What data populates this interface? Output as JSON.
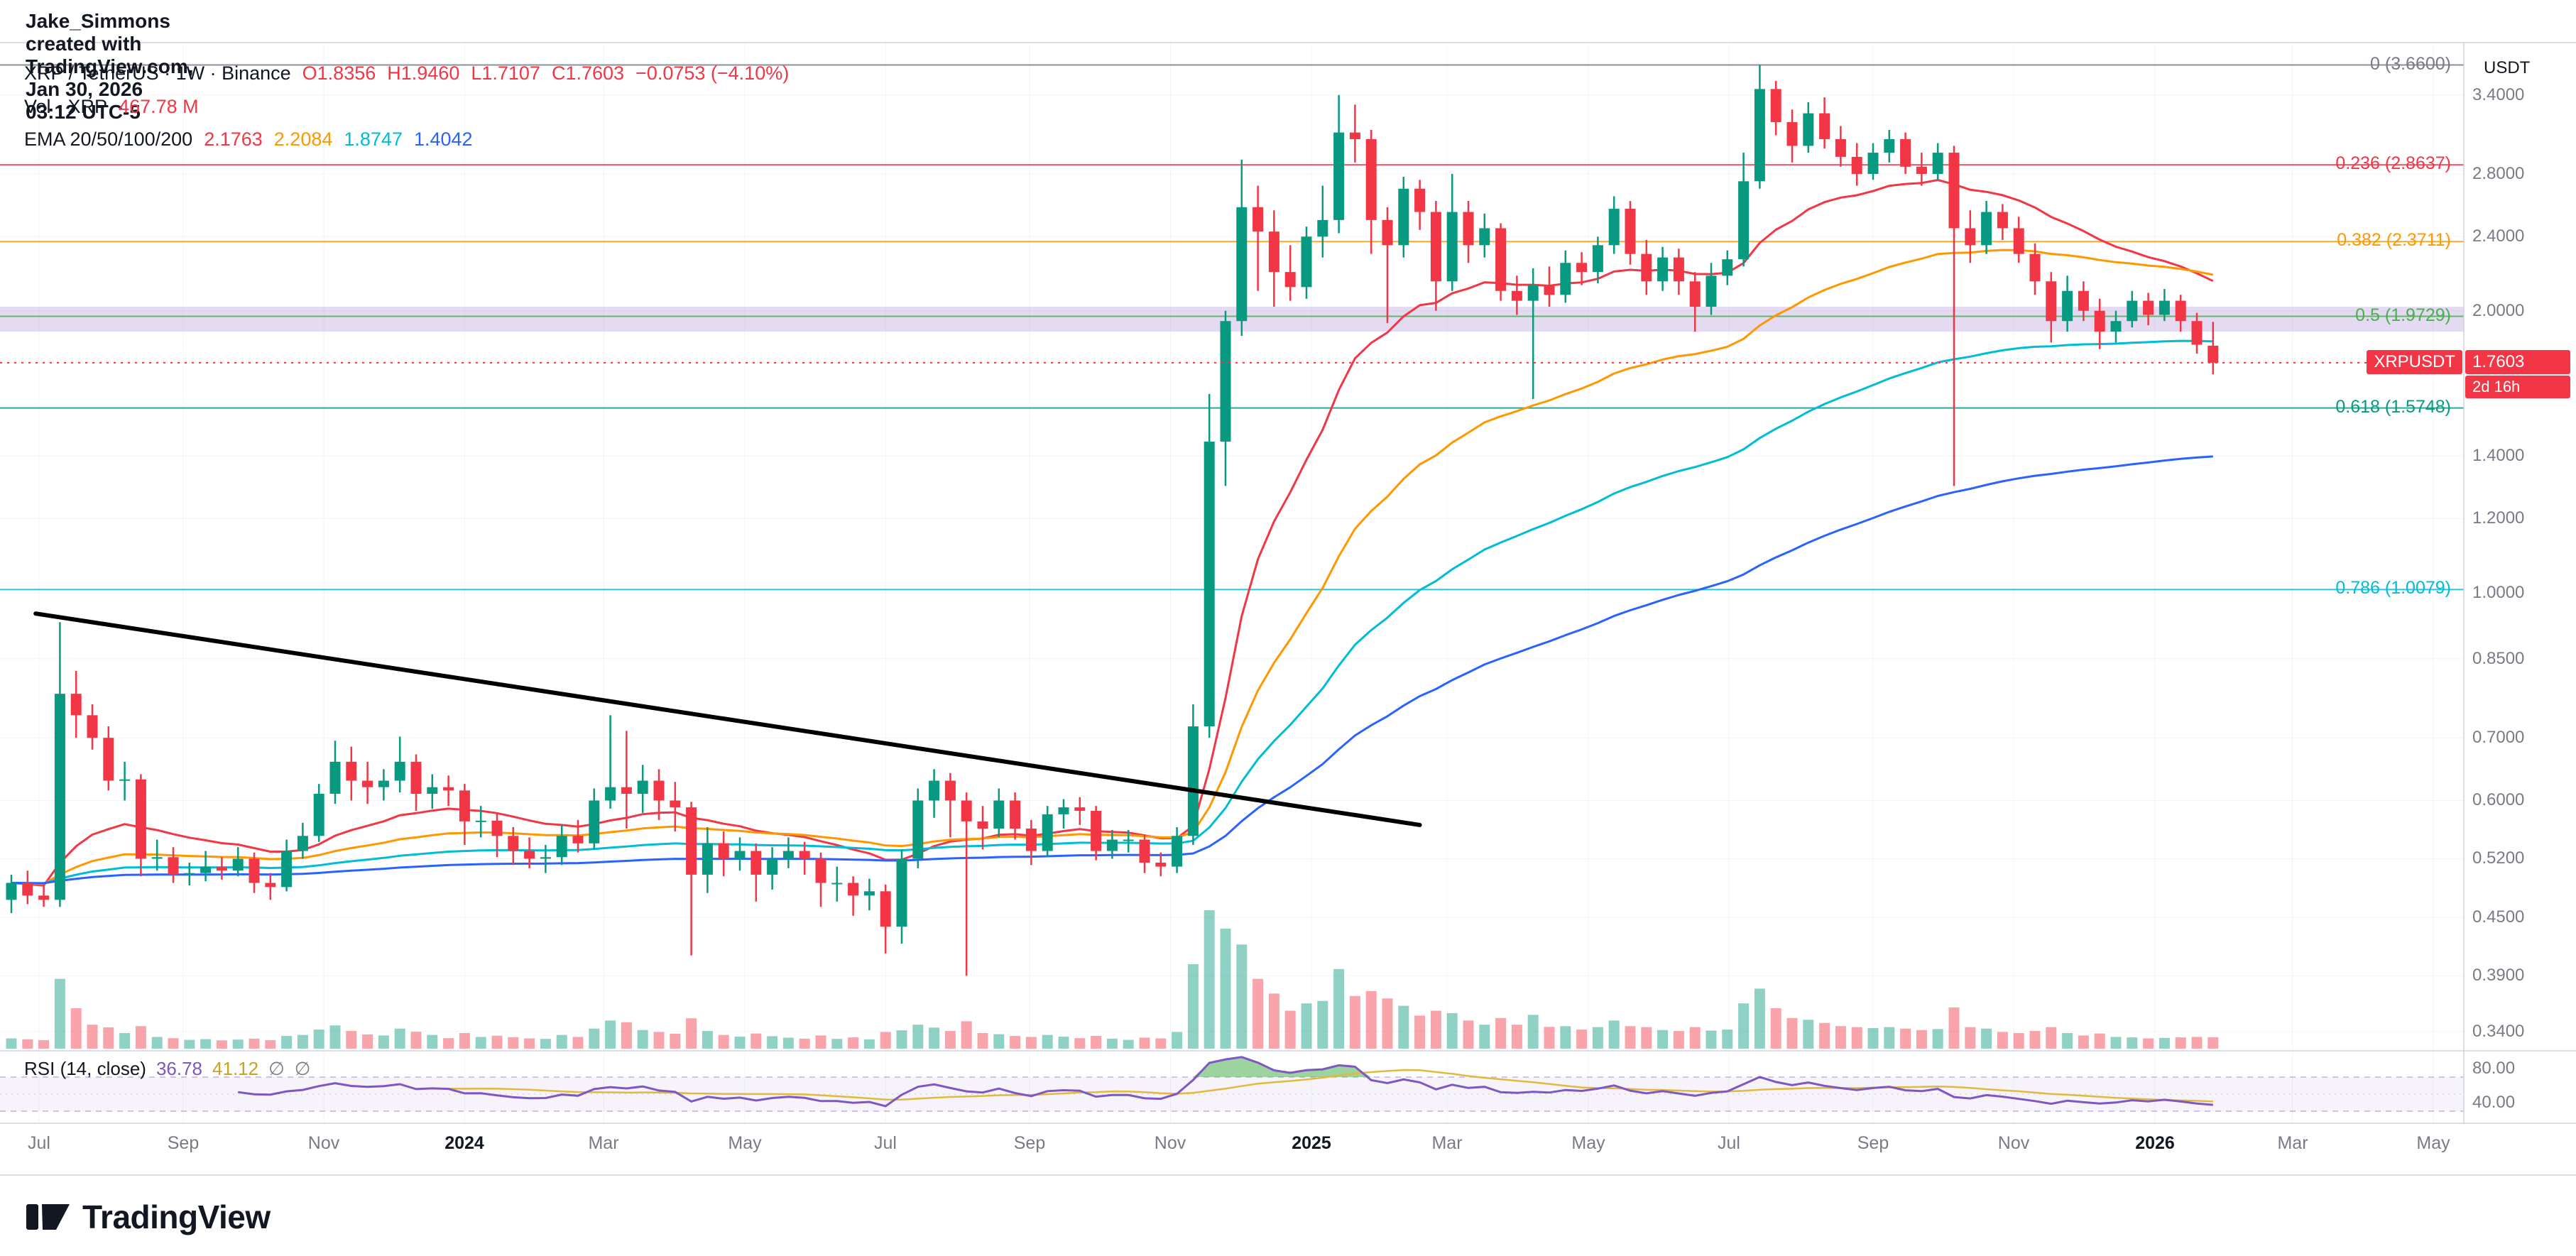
{
  "attribution": "Jake_Simmons created with TradingView.com, Jan 30, 2026 03:12 UTC-5",
  "header": {
    "symbol_line": {
      "segments": [
        {
          "text": "XRP / TetherUS · 1W · Binance",
          "color": "#131722"
        },
        {
          "text": "O1.8356",
          "color": "#f23645"
        },
        {
          "text": "H1.9460",
          "color": "#f23645"
        },
        {
          "text": "L1.7107",
          "color": "#f23645"
        },
        {
          "text": "C1.7603",
          "color": "#f23645"
        },
        {
          "text": "−0.0753 (−4.10%)",
          "color": "#f23645"
        }
      ]
    },
    "volume_line": {
      "segments": [
        {
          "text": "Vol · XRP",
          "color": "#131722"
        },
        {
          "text": "467.78 M",
          "color": "#f23645"
        }
      ]
    },
    "ema_line": {
      "segments": [
        {
          "text": "EMA 20/50/100/200",
          "color": "#131722"
        },
        {
          "text": "2.1763",
          "color": "#f23645"
        },
        {
          "text": "2.2084",
          "color": "#ff9800"
        },
        {
          "text": "1.8747",
          "color": "#00bcd4"
        },
        {
          "text": "1.4042",
          "color": "#2962ff"
        }
      ]
    }
  },
  "rsi_panel": {
    "legend": {
      "segments": [
        {
          "text": "RSI (14, close)",
          "color": "#131722"
        },
        {
          "text": "36.78",
          "color": "#7e57c2"
        },
        {
          "text": "41.12",
          "color": "#c9a227"
        },
        {
          "text": "∅",
          "color": "#787b86"
        },
        {
          "text": "∅",
          "color": "#787b86"
        }
      ]
    },
    "axis_labels": [
      {
        "text": "80.00",
        "value": 80
      },
      {
        "text": "40.00",
        "value": 40
      }
    ],
    "period": 14,
    "value": 36.78,
    "ma_value": 41.12,
    "levels": {
      "upper": 70,
      "middle": 50,
      "lower": 30
    },
    "colors": {
      "rsi": "#7e57c2",
      "ma": "#e2b93d",
      "band": "rgba(126,87,194,0.07)",
      "level_line": "rgba(126,87,194,0.45)",
      "overbought_fill": "rgba(76,175,80,0.55)"
    }
  },
  "price_axis": {
    "title": "USDT",
    "ticks": [
      {
        "label": "3.4000",
        "price": 3.4
      },
      {
        "label": "2.8000",
        "price": 2.8
      },
      {
        "label": "2.4000",
        "price": 2.4
      },
      {
        "label": "2.0000",
        "price": 2.0
      },
      {
        "label": "1.4000",
        "price": 1.4
      },
      {
        "label": "1.2000",
        "price": 1.2
      },
      {
        "label": "1.0000",
        "price": 1.0
      },
      {
        "label": "0.8500",
        "price": 0.85
      },
      {
        "label": "0.7000",
        "price": 0.7
      },
      {
        "label": "0.6000",
        "price": 0.6
      },
      {
        "label": "0.5200",
        "price": 0.52
      },
      {
        "label": "0.4500",
        "price": 0.45
      },
      {
        "label": "0.3900",
        "price": 0.39
      },
      {
        "label": "0.3400",
        "price": 0.34
      }
    ]
  },
  "time_axis": {
    "labels": [
      {
        "text": "Jul",
        "week": 1.7,
        "year": false
      },
      {
        "text": "Sep",
        "week": 10.6,
        "year": false
      },
      {
        "text": "Nov",
        "week": 19.3,
        "year": false
      },
      {
        "text": "2024",
        "week": 28.0,
        "year": true
      },
      {
        "text": "Mar",
        "week": 36.6,
        "year": false
      },
      {
        "text": "May",
        "week": 45.3,
        "year": false
      },
      {
        "text": "Jul",
        "week": 54.0,
        "year": false
      },
      {
        "text": "Sep",
        "week": 62.9,
        "year": false
      },
      {
        "text": "Nov",
        "week": 71.6,
        "year": false
      },
      {
        "text": "2025",
        "week": 80.3,
        "year": true
      },
      {
        "text": "Mar",
        "week": 88.7,
        "year": false
      },
      {
        "text": "May",
        "week": 97.4,
        "year": false
      },
      {
        "text": "Jul",
        "week": 106.1,
        "year": false
      },
      {
        "text": "Sep",
        "week": 115.0,
        "year": false
      },
      {
        "text": "Nov",
        "week": 123.7,
        "year": false
      },
      {
        "text": "2026",
        "week": 132.4,
        "year": true
      },
      {
        "text": "Mar",
        "week": 140.9,
        "year": false
      },
      {
        "text": "May",
        "week": 149.6,
        "year": false
      }
    ]
  },
  "last_price": {
    "symbol_tag": "XRPUSDT",
    "price_label": "1.7603",
    "price": 1.7603,
    "countdown": "2d 16h",
    "color": "#f23645"
  },
  "fib": {
    "levels": [
      {
        "label": "0",
        "value": "3.6600",
        "price": 3.66,
        "color": "#787b86"
      },
      {
        "label": "0.236",
        "value": "2.8637",
        "price": 2.8637,
        "color": "#f23645"
      },
      {
        "label": "0.382",
        "value": "2.3711",
        "price": 2.3711,
        "color": "#ff9800"
      },
      {
        "label": "0.5",
        "value": "1.9729",
        "price": 1.9729,
        "color": "#4caf50"
      },
      {
        "label": "0.618",
        "value": "1.5748",
        "price": 1.5748,
        "color": "#089981"
      },
      {
        "label": "0.786",
        "value": "1.0079",
        "price": 1.0079,
        "color": "#00bcd4"
      }
    ]
  },
  "zone": {
    "top_price": 2.02,
    "bottom_price": 1.9,
    "color": "rgba(103,58,183,0.18)"
  },
  "trendline": {
    "x1_week": 1.5,
    "price1": 0.95,
    "x2_week": 87,
    "price2": 0.565,
    "color": "#000000",
    "width": 6
  },
  "chart_data": {
    "type": "candlestick",
    "symbol": "XRP / TetherUS",
    "interval": "1W",
    "exchange": "Binance",
    "scale": "log",
    "ohlc_last": {
      "open": 1.8356,
      "high": 1.946,
      "low": 1.7107,
      "close": 1.7603,
      "change": -0.0753,
      "change_pct": -4.1
    },
    "volume_last": "467.78 M",
    "ylim": [
      0.33,
      3.8
    ],
    "colors": {
      "up": "#089981",
      "down": "#f23645",
      "vol_up": "rgba(8,153,129,0.45)",
      "vol_down": "rgba(242,54,69,0.45)"
    },
    "emas": [
      {
        "period": 20,
        "color": "#f23645",
        "last": 2.1763
      },
      {
        "period": 50,
        "color": "#ff9800",
        "last": 2.2084
      },
      {
        "period": 100,
        "color": "#00bcd4",
        "last": 1.8747
      },
      {
        "period": 200,
        "color": "#2962ff",
        "last": 1.4042
      }
    ],
    "candles": [
      [
        0.47,
        0.5,
        0.455,
        0.49,
        420
      ],
      [
        0.49,
        0.505,
        0.465,
        0.475,
        380
      ],
      [
        0.475,
        0.488,
        0.462,
        0.47,
        350
      ],
      [
        0.47,
        0.93,
        0.462,
        0.78,
        2850
      ],
      [
        0.78,
        0.825,
        0.7,
        0.74,
        1650
      ],
      [
        0.74,
        0.76,
        0.68,
        0.7,
        980
      ],
      [
        0.7,
        0.72,
        0.615,
        0.63,
        870
      ],
      [
        0.63,
        0.66,
        0.6,
        0.632,
        640
      ],
      [
        0.632,
        0.64,
        0.498,
        0.52,
        920
      ],
      [
        0.52,
        0.545,
        0.505,
        0.522,
        480
      ],
      [
        0.522,
        0.535,
        0.49,
        0.5,
        430
      ],
      [
        0.5,
        0.515,
        0.487,
        0.502,
        360
      ],
      [
        0.502,
        0.53,
        0.492,
        0.51,
        390
      ],
      [
        0.51,
        0.522,
        0.494,
        0.505,
        340
      ],
      [
        0.505,
        0.535,
        0.498,
        0.52,
        370
      ],
      [
        0.52,
        0.528,
        0.478,
        0.49,
        410
      ],
      [
        0.49,
        0.502,
        0.47,
        0.485,
        350
      ],
      [
        0.485,
        0.545,
        0.48,
        0.53,
        520
      ],
      [
        0.53,
        0.568,
        0.52,
        0.55,
        560
      ],
      [
        0.55,
        0.625,
        0.542,
        0.61,
        780
      ],
      [
        0.61,
        0.695,
        0.595,
        0.66,
        950
      ],
      [
        0.66,
        0.685,
        0.6,
        0.63,
        720
      ],
      [
        0.63,
        0.66,
        0.595,
        0.62,
        580
      ],
      [
        0.62,
        0.648,
        0.6,
        0.63,
        540
      ],
      [
        0.63,
        0.702,
        0.612,
        0.66,
        820
      ],
      [
        0.66,
        0.672,
        0.585,
        0.61,
        690
      ],
      [
        0.61,
        0.64,
        0.588,
        0.62,
        560
      ],
      [
        0.62,
        0.638,
        0.592,
        0.615,
        430
      ],
      [
        0.615,
        0.625,
        0.538,
        0.57,
        640
      ],
      [
        0.57,
        0.592,
        0.548,
        0.571,
        480
      ],
      [
        0.571,
        0.582,
        0.522,
        0.55,
        530
      ],
      [
        0.55,
        0.562,
        0.512,
        0.53,
        470
      ],
      [
        0.53,
        0.548,
        0.508,
        0.52,
        420
      ],
      [
        0.52,
        0.538,
        0.502,
        0.522,
        400
      ],
      [
        0.522,
        0.565,
        0.512,
        0.55,
        560
      ],
      [
        0.55,
        0.572,
        0.528,
        0.54,
        480
      ],
      [
        0.54,
        0.618,
        0.532,
        0.6,
        820
      ],
      [
        0.6,
        0.74,
        0.588,
        0.62,
        1150
      ],
      [
        0.62,
        0.712,
        0.56,
        0.61,
        1080
      ],
      [
        0.61,
        0.655,
        0.582,
        0.63,
        760
      ],
      [
        0.63,
        0.648,
        0.572,
        0.6,
        680
      ],
      [
        0.6,
        0.628,
        0.556,
        0.59,
        610
      ],
      [
        0.59,
        0.598,
        0.41,
        0.5,
        1240
      ],
      [
        0.5,
        0.562,
        0.478,
        0.54,
        720
      ],
      [
        0.54,
        0.556,
        0.498,
        0.52,
        560
      ],
      [
        0.52,
        0.548,
        0.505,
        0.53,
        490
      ],
      [
        0.53,
        0.54,
        0.468,
        0.5,
        620
      ],
      [
        0.5,
        0.535,
        0.482,
        0.52,
        510
      ],
      [
        0.52,
        0.548,
        0.508,
        0.53,
        450
      ],
      [
        0.53,
        0.542,
        0.5,
        0.52,
        410
      ],
      [
        0.52,
        0.528,
        0.462,
        0.49,
        540
      ],
      [
        0.49,
        0.51,
        0.468,
        0.49,
        400
      ],
      [
        0.49,
        0.498,
        0.452,
        0.475,
        460
      ],
      [
        0.475,
        0.495,
        0.458,
        0.48,
        380
      ],
      [
        0.48,
        0.488,
        0.412,
        0.44,
        680
      ],
      [
        0.44,
        0.532,
        0.422,
        0.52,
        750
      ],
      [
        0.52,
        0.618,
        0.508,
        0.6,
        980
      ],
      [
        0.6,
        0.648,
        0.575,
        0.63,
        860
      ],
      [
        0.63,
        0.642,
        0.548,
        0.6,
        720
      ],
      [
        0.6,
        0.612,
        0.39,
        0.57,
        1120
      ],
      [
        0.57,
        0.592,
        0.532,
        0.56,
        640
      ],
      [
        0.56,
        0.618,
        0.548,
        0.6,
        590
      ],
      [
        0.6,
        0.612,
        0.545,
        0.56,
        520
      ],
      [
        0.56,
        0.572,
        0.512,
        0.53,
        480
      ],
      [
        0.53,
        0.592,
        0.522,
        0.58,
        560
      ],
      [
        0.58,
        0.602,
        0.56,
        0.59,
        490
      ],
      [
        0.59,
        0.605,
        0.565,
        0.585,
        430
      ],
      [
        0.585,
        0.592,
        0.518,
        0.53,
        520
      ],
      [
        0.53,
        0.558,
        0.52,
        0.545,
        410
      ],
      [
        0.545,
        0.558,
        0.528,
        0.545,
        360
      ],
      [
        0.545,
        0.552,
        0.502,
        0.515,
        450
      ],
      [
        0.515,
        0.528,
        0.498,
        0.51,
        420
      ],
      [
        0.51,
        0.562,
        0.502,
        0.55,
        680
      ],
      [
        0.55,
        0.76,
        0.538,
        0.72,
        3450
      ],
      [
        0.72,
        1.63,
        0.7,
        1.45,
        5650
      ],
      [
        1.45,
        2.0,
        1.3,
        1.95,
        4900
      ],
      [
        1.95,
        2.9,
        1.88,
        2.58,
        4250
      ],
      [
        2.58,
        2.72,
        2.1,
        2.43,
        2850
      ],
      [
        2.43,
        2.56,
        2.02,
        2.2,
        2250
      ],
      [
        2.2,
        2.35,
        2.05,
        2.12,
        1550
      ],
      [
        2.12,
        2.46,
        2.06,
        2.4,
        1850
      ],
      [
        2.4,
        2.72,
        2.28,
        2.5,
        1950
      ],
      [
        2.5,
        3.4,
        2.42,
        3.1,
        3250
      ],
      [
        3.1,
        3.32,
        2.88,
        3.05,
        2150
      ],
      [
        3.05,
        3.12,
        2.3,
        2.5,
        2350
      ],
      [
        2.5,
        2.58,
        1.94,
        2.35,
        2050
      ],
      [
        2.35,
        2.78,
        2.28,
        2.7,
        1750
      ],
      [
        2.7,
        2.76,
        2.44,
        2.55,
        1350
      ],
      [
        2.55,
        2.62,
        2.0,
        2.15,
        1550
      ],
      [
        2.15,
        2.8,
        2.1,
        2.55,
        1450
      ],
      [
        2.55,
        2.62,
        2.25,
        2.35,
        1150
      ],
      [
        2.35,
        2.54,
        2.28,
        2.45,
        980
      ],
      [
        2.45,
        2.48,
        2.05,
        2.1,
        1250
      ],
      [
        2.1,
        2.18,
        1.98,
        2.05,
        980
      ],
      [
        2.05,
        2.22,
        1.61,
        2.13,
        1380
      ],
      [
        2.13,
        2.23,
        2.02,
        2.08,
        890
      ],
      [
        2.08,
        2.32,
        2.04,
        2.25,
        920
      ],
      [
        2.25,
        2.31,
        2.13,
        2.2,
        780
      ],
      [
        2.2,
        2.4,
        2.14,
        2.35,
        880
      ],
      [
        2.35,
        2.65,
        2.3,
        2.57,
        1150
      ],
      [
        2.57,
        2.62,
        2.24,
        2.3,
        920
      ],
      [
        2.3,
        2.38,
        2.08,
        2.15,
        880
      ],
      [
        2.15,
        2.34,
        2.1,
        2.28,
        760
      ],
      [
        2.28,
        2.33,
        2.08,
        2.15,
        720
      ],
      [
        2.15,
        2.2,
        1.9,
        2.02,
        880
      ],
      [
        2.02,
        2.25,
        1.98,
        2.18,
        740
      ],
      [
        2.18,
        2.32,
        2.13,
        2.27,
        780
      ],
      [
        2.27,
        2.95,
        2.23,
        2.75,
        1850
      ],
      [
        2.75,
        3.66,
        2.7,
        3.45,
        2450
      ],
      [
        3.45,
        3.52,
        3.08,
        3.18,
        1650
      ],
      [
        3.18,
        3.28,
        2.88,
        3.0,
        1250
      ],
      [
        3.0,
        3.34,
        2.95,
        3.25,
        1180
      ],
      [
        3.25,
        3.38,
        2.98,
        3.05,
        1050
      ],
      [
        3.05,
        3.15,
        2.85,
        2.92,
        920
      ],
      [
        2.92,
        3.02,
        2.72,
        2.8,
        880
      ],
      [
        2.8,
        3.02,
        2.76,
        2.95,
        840
      ],
      [
        2.95,
        3.12,
        2.88,
        3.05,
        880
      ],
      [
        3.05,
        3.1,
        2.8,
        2.85,
        820
      ],
      [
        2.85,
        2.95,
        2.72,
        2.8,
        760
      ],
      [
        2.8,
        3.02,
        2.76,
        2.95,
        800
      ],
      [
        2.95,
        3.0,
        1.3,
        2.45,
        1680
      ],
      [
        2.45,
        2.56,
        2.25,
        2.35,
        880
      ],
      [
        2.35,
        2.62,
        2.3,
        2.55,
        820
      ],
      [
        2.55,
        2.6,
        2.38,
        2.45,
        680
      ],
      [
        2.45,
        2.52,
        2.25,
        2.3,
        640
      ],
      [
        2.3,
        2.36,
        2.08,
        2.15,
        720
      ],
      [
        2.15,
        2.2,
        1.85,
        1.95,
        880
      ],
      [
        1.95,
        2.18,
        1.9,
        2.1,
        640
      ],
      [
        2.1,
        2.15,
        1.95,
        2.0,
        540
      ],
      [
        2.0,
        2.06,
        1.82,
        1.9,
        620
      ],
      [
        1.9,
        2.0,
        1.85,
        1.95,
        480
      ],
      [
        1.95,
        2.1,
        1.92,
        2.05,
        460
      ],
      [
        2.05,
        2.09,
        1.93,
        1.98,
        420
      ],
      [
        1.98,
        2.11,
        1.95,
        2.05,
        440
      ],
      [
        2.05,
        2.08,
        1.9,
        1.95,
        460
      ],
      [
        1.95,
        1.99,
        1.8,
        1.84,
        480
      ],
      [
        1.8356,
        1.946,
        1.7107,
        1.7603,
        467.78
      ]
    ]
  },
  "footer": {
    "brand": "TradingView"
  }
}
